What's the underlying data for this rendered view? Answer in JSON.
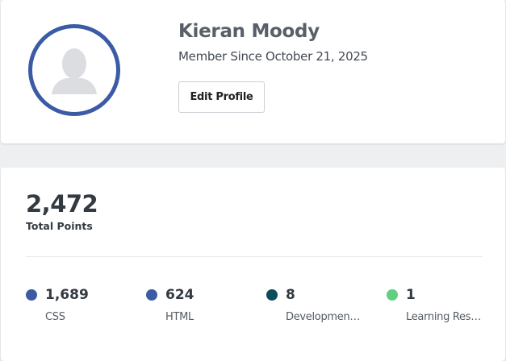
{
  "profile": {
    "name": "Kieran Moody",
    "member_since": "Member Since October 21, 2025",
    "edit_button": "Edit Profile",
    "avatar_icon": "person-silhouette-icon",
    "avatar_ring_color": "#3b5ba5"
  },
  "points": {
    "total": "2,472",
    "total_label": "Total Points",
    "categories": [
      {
        "value": "1,689",
        "label": "CSS",
        "color": "#3b5ba5"
      },
      {
        "value": "624",
        "label": "HTML",
        "color": "#3b5ba5"
      },
      {
        "value": "8",
        "label": "Development Tools",
        "color": "#0b4d5c"
      },
      {
        "value": "1",
        "label": "Learning Resources",
        "color": "#5fcf80"
      }
    ]
  }
}
